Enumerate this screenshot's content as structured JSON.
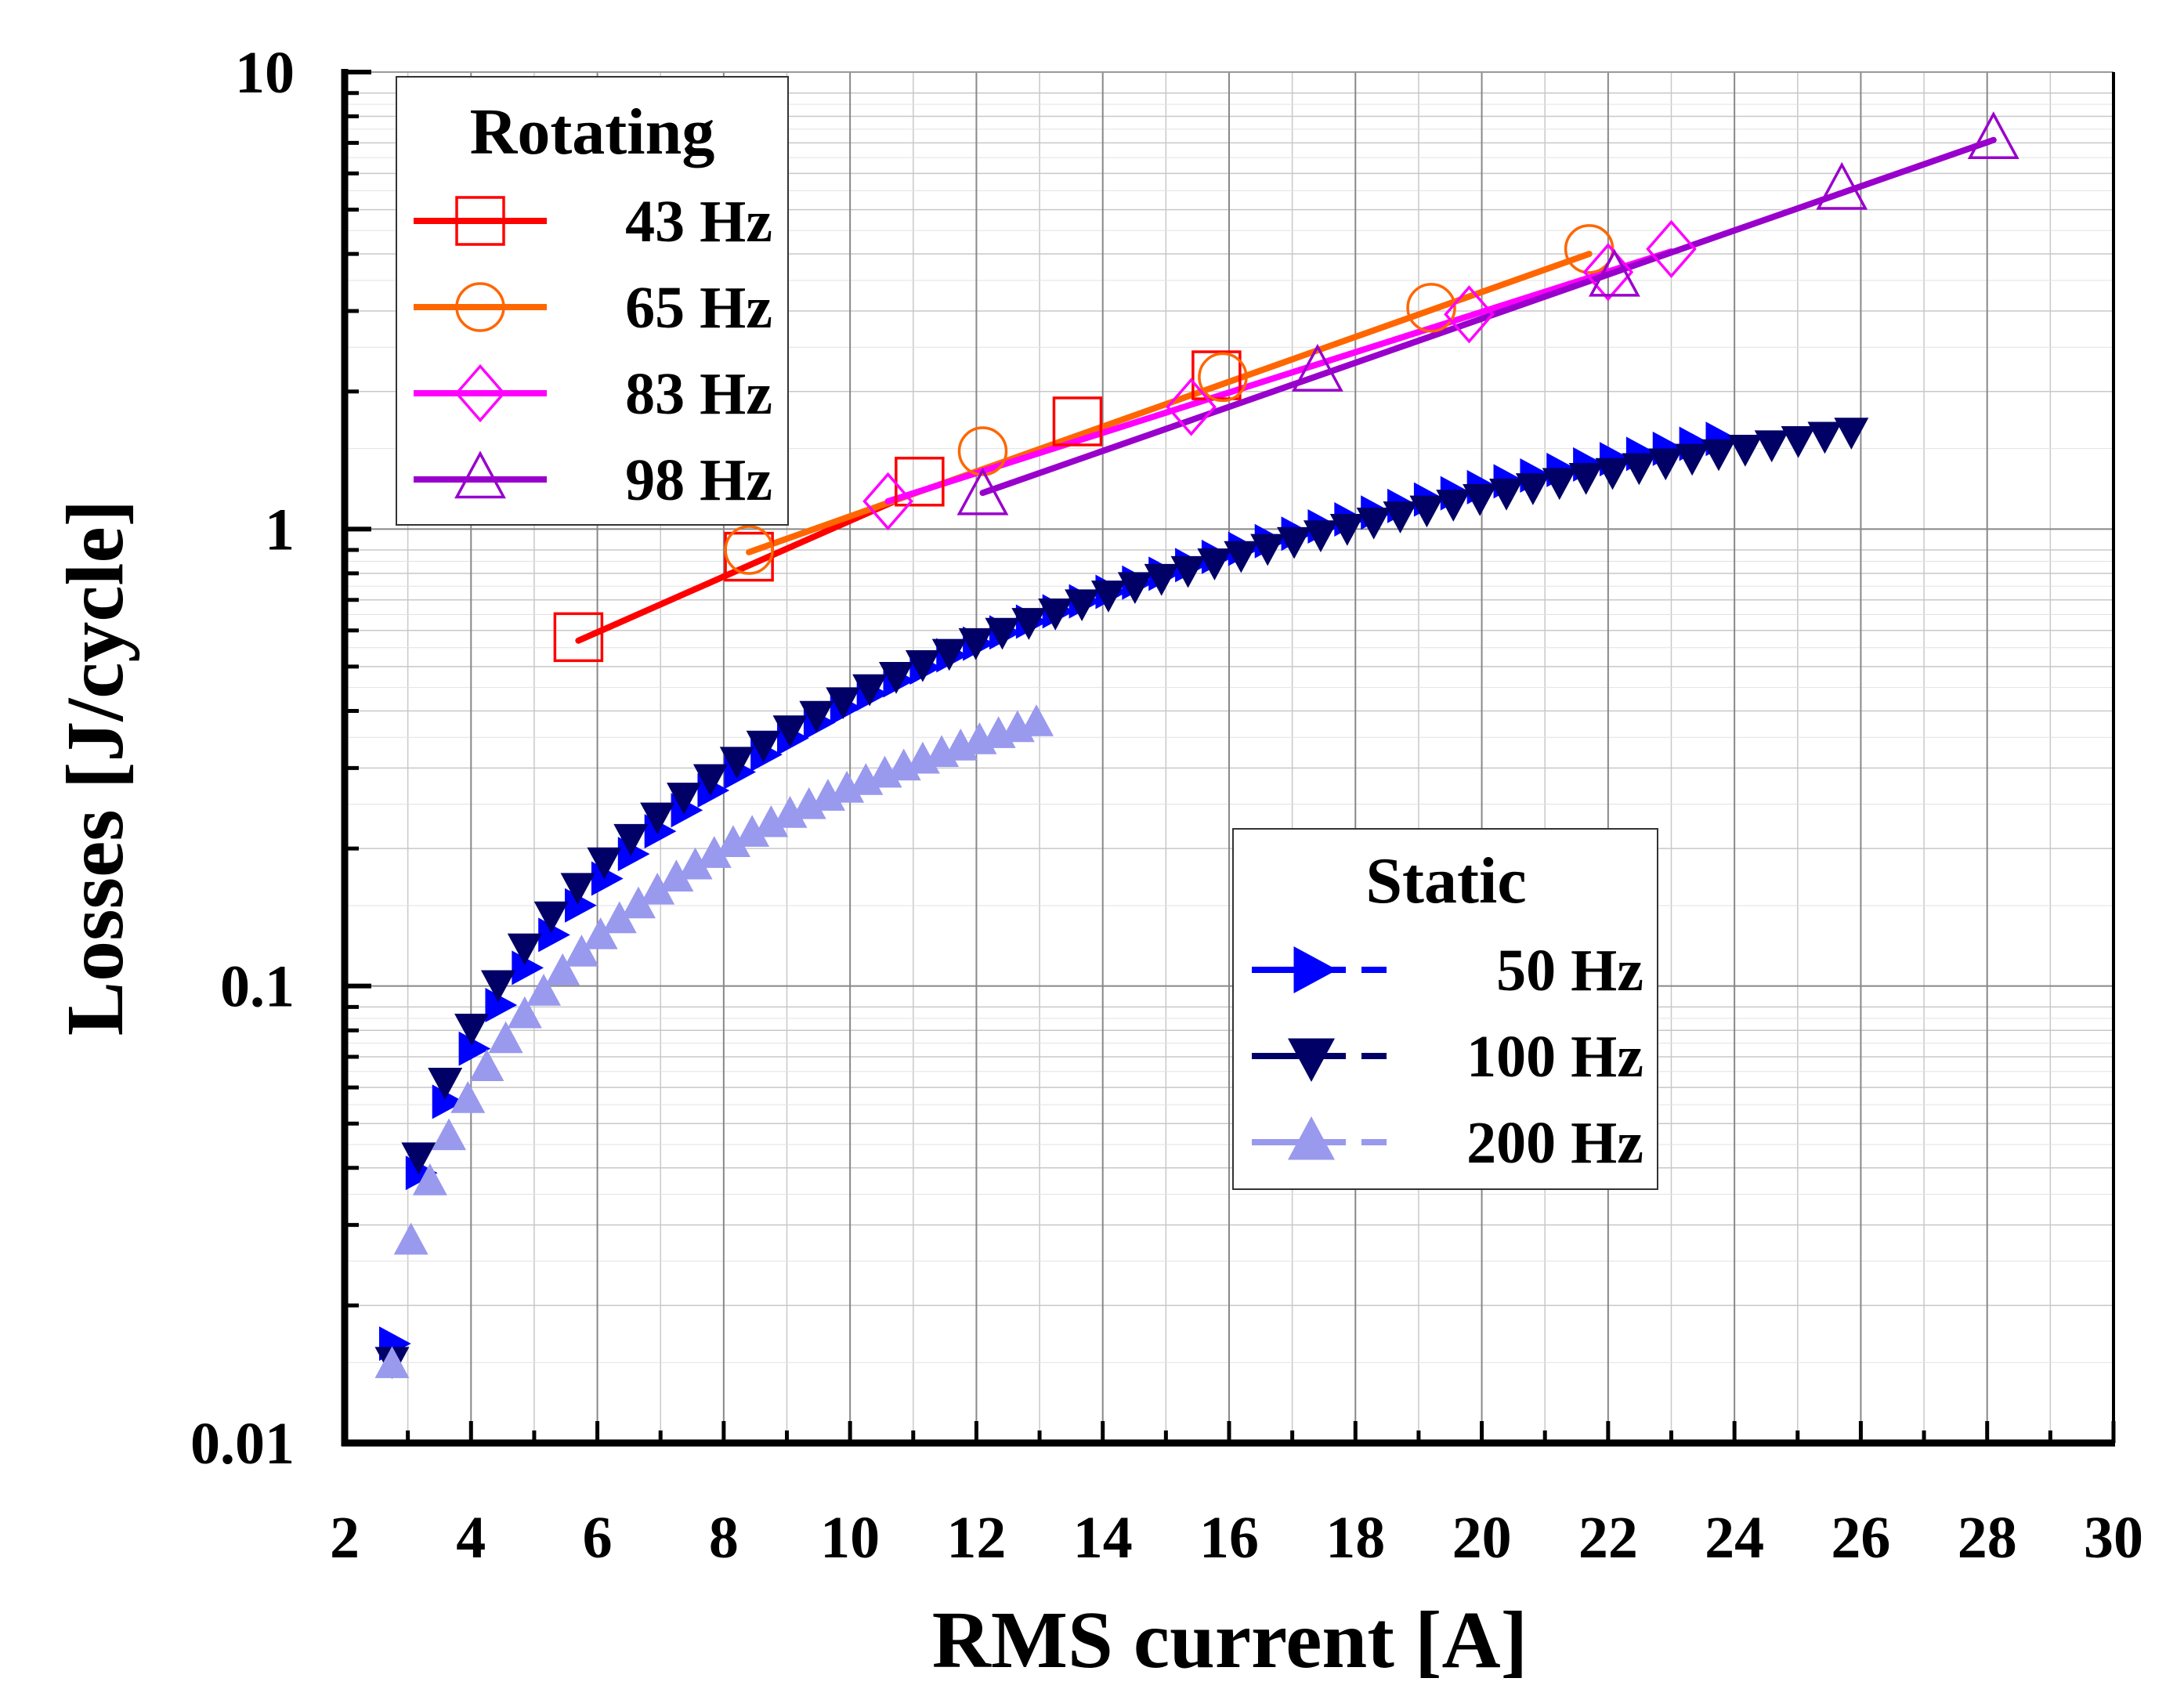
{
  "chart_data": {
    "type": "line",
    "xlabel": "RMS current [A]",
    "ylabel": "Losses [J/cycle]",
    "x_scale": "linear",
    "y_scale": "log",
    "xlim": [
      2,
      30
    ],
    "ylim": [
      0.01,
      10
    ],
    "xticks": [
      2,
      4,
      6,
      8,
      10,
      12,
      14,
      16,
      18,
      20,
      22,
      24,
      26,
      28,
      30
    ],
    "xtick_labels": [
      "2",
      "4",
      "6",
      "8",
      "10",
      "12",
      "14",
      "16",
      "18",
      "20",
      "22",
      "24",
      "26",
      "28",
      "30"
    ],
    "yticks": [
      0.01,
      0.1,
      1,
      10
    ],
    "ytick_labels": [
      "0.01",
      "0.1",
      "1",
      "10"
    ],
    "grid": true,
    "legends": [
      {
        "title": "Rotating",
        "placement": "top-left",
        "entries": [
          {
            "label": "43 Hz",
            "series": "rot43"
          },
          {
            "label": "65 Hz",
            "series": "rot65"
          },
          {
            "label": "83 Hz",
            "series": "rot83"
          },
          {
            "label": "98 Hz",
            "series": "rot98"
          }
        ]
      },
      {
        "title": "Static",
        "placement": "center-right",
        "entries": [
          {
            "label": "50 Hz",
            "series": "st50"
          },
          {
            "label": "100 Hz",
            "series": "st100"
          },
          {
            "label": "200 Hz",
            "series": "st200"
          }
        ]
      }
    ],
    "series": [
      {
        "id": "rot43",
        "name": "43 Hz",
        "group": "Rotating",
        "color": "#ff0000",
        "marker": "square-open",
        "points": [
          [
            5.7,
            0.58
          ],
          [
            8.4,
            0.87
          ],
          [
            11.1,
            1.27
          ],
          [
            13.6,
            1.72
          ],
          [
            15.8,
            2.17
          ]
        ],
        "fit_line": [
          [
            5.7,
            0.57
          ],
          [
            10.7,
            1.15
          ]
        ]
      },
      {
        "id": "rot65",
        "name": "65 Hz",
        "group": "Rotating",
        "color": "#ff6600",
        "marker": "circle-open",
        "points": [
          [
            8.4,
            0.9
          ],
          [
            12.1,
            1.48
          ],
          [
            15.9,
            2.15
          ],
          [
            19.2,
            3.05
          ],
          [
            21.7,
            4.1
          ]
        ],
        "fit_line": [
          [
            8.4,
            0.89
          ],
          [
            21.7,
            4.0
          ]
        ]
      },
      {
        "id": "rot83",
        "name": "83 Hz",
        "group": "Rotating",
        "color": "#ff00ff",
        "marker": "diamond-open",
        "points": [
          [
            10.6,
            1.15
          ],
          [
            15.4,
            1.85
          ],
          [
            19.8,
            2.95
          ],
          [
            22.0,
            3.65
          ],
          [
            23.0,
            4.1
          ]
        ],
        "fit_line": [
          [
            10.6,
            1.15
          ],
          [
            23.0,
            4.05
          ]
        ]
      },
      {
        "id": "rot98",
        "name": "98 Hz",
        "group": "Rotating",
        "color": "#9900cc",
        "marker": "triangle-up-open",
        "points": [
          [
            12.1,
            1.18
          ],
          [
            17.4,
            2.2
          ],
          [
            22.1,
            3.55
          ],
          [
            25.7,
            5.5
          ],
          [
            28.1,
            7.1
          ]
        ],
        "fit_line": [
          [
            12.1,
            1.2
          ],
          [
            28.1,
            7.1
          ]
        ]
      },
      {
        "id": "st50",
        "name": "50 Hz",
        "group": "Static",
        "color": "#0000ff",
        "marker": "triangle-right-filled",
        "dense": {
          "x_start": 2.75,
          "x_end": 23.8,
          "step": 0.42,
          "y_start": 0.0165,
          "y_end": 1.58,
          "gamma": 0.54,
          "shape": 1.15
        },
        "points": []
      },
      {
        "id": "st100",
        "name": "100 Hz",
        "group": "Static",
        "color": "#000066",
        "marker": "triangle-down-filled",
        "dense": {
          "x_start": 2.75,
          "x_end": 25.95,
          "step": 0.42,
          "y_start": 0.0152,
          "y_end": 1.65,
          "gamma": 0.49,
          "shape": 1.18
        },
        "points": []
      },
      {
        "id": "st200",
        "name": "200 Hz",
        "group": "Static",
        "color": "#9999ee",
        "marker": "triangle-up-filled",
        "dense": {
          "x_start": 2.75,
          "x_end": 13.2,
          "step": 0.3,
          "y_start": 0.0148,
          "y_end": 0.385,
          "gamma": 0.62,
          "shape": 1.35
        },
        "points": []
      }
    ]
  }
}
